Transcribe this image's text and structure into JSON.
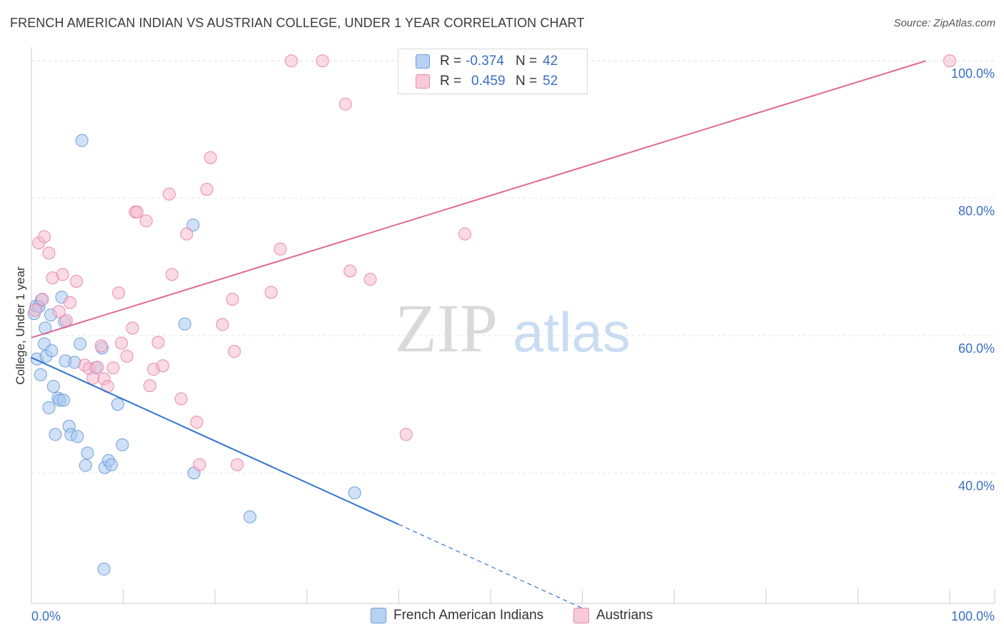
{
  "title": "FRENCH AMERICAN INDIAN VS AUSTRIAN COLLEGE, UNDER 1 YEAR CORRELATION CHART",
  "source": "Source: ZipAtlas.com",
  "watermark": {
    "zip": "ZIP",
    "atlas": "atlas"
  },
  "legend": {
    "rows": [
      {
        "r_label": "R =",
        "r_value": "-0.374",
        "n_label": "N =",
        "n_value": "42"
      },
      {
        "r_label": "R =",
        "r_value": "0.459",
        "n_label": "N =",
        "n_value": "52"
      }
    ]
  },
  "bottom_legend": [
    "French American Indians",
    "Austrians"
  ],
  "colors": {
    "blue_fill": "#a9c8f0",
    "blue_stroke": "#6f9fd8",
    "blue_line": "#2f74d0",
    "pink_fill": "#f6bcd0",
    "pink_stroke": "#e98aab",
    "pink_line": "#e06a93",
    "tick_text": "#3a6fc4",
    "grid": "#e3e3e3",
    "axis": "#cccccc"
  },
  "chart_data": {
    "type": "scatter",
    "title": "FRENCH AMERICAN INDIAN VS AUSTRIAN COLLEGE, UNDER 1 YEAR CORRELATION CHART",
    "xlabel": "",
    "ylabel": "College, Under 1 year",
    "xlim": [
      0,
      100
    ],
    "ylim": [
      21,
      102
    ],
    "x_tick_labels": [
      "0.0%",
      "100.0%"
    ],
    "y_ticks": [
      40,
      60,
      80,
      100
    ],
    "y_tick_labels": [
      "40.0%",
      "60.0%",
      "80.0%",
      "100.0%"
    ],
    "grid": true,
    "series": [
      {
        "name": "French American Indians",
        "r": -0.374,
        "n": 42,
        "trend": {
          "x0": 0,
          "y0": 56.8,
          "x1": 40.0,
          "y1": 32.5,
          "dash_to_x": 60.0,
          "dash_to_y": 20.3
        },
        "points": [
          [
            0.3,
            63.2
          ],
          [
            0.5,
            64.3
          ],
          [
            0.8,
            64.2
          ],
          [
            1.1,
            65.2
          ],
          [
            0.6,
            56.6
          ],
          [
            1.0,
            54.3
          ],
          [
            1.4,
            58.8
          ],
          [
            1.5,
            61.1
          ],
          [
            1.6,
            57.0
          ],
          [
            1.9,
            49.5
          ],
          [
            2.1,
            63.0
          ],
          [
            2.2,
            57.8
          ],
          [
            2.4,
            52.6
          ],
          [
            2.6,
            45.6
          ],
          [
            2.9,
            50.9
          ],
          [
            3.1,
            50.6
          ],
          [
            3.3,
            65.6
          ],
          [
            3.5,
            50.6
          ],
          [
            3.6,
            62.0
          ],
          [
            3.7,
            56.3
          ],
          [
            4.1,
            46.8
          ],
          [
            4.3,
            45.6
          ],
          [
            4.7,
            56.1
          ],
          [
            5.0,
            45.3
          ],
          [
            5.3,
            58.8
          ],
          [
            5.9,
            41.1
          ],
          [
            6.1,
            42.9
          ],
          [
            5.5,
            88.4
          ],
          [
            7.0,
            55.3
          ],
          [
            7.7,
            58.2
          ],
          [
            8.0,
            40.8
          ],
          [
            8.4,
            41.8
          ],
          [
            8.7,
            41.2
          ],
          [
            9.4,
            50.0
          ],
          [
            9.9,
            44.1
          ],
          [
            16.7,
            61.7
          ],
          [
            17.6,
            76.1
          ],
          [
            17.7,
            40.0
          ],
          [
            23.8,
            33.6
          ],
          [
            7.9,
            26.0
          ],
          [
            35.2,
            37.1
          ],
          [
            0.8,
            64.2
          ]
        ]
      },
      {
        "name": "Austrians",
        "r": 0.459,
        "n": 52,
        "trend": {
          "x0": 0,
          "y0": 59.7,
          "x1": 97.4,
          "y1": 100.0
        },
        "points": [
          [
            0.4,
            63.7
          ],
          [
            0.8,
            73.5
          ],
          [
            1.2,
            65.3
          ],
          [
            1.4,
            74.4
          ],
          [
            1.9,
            72.0
          ],
          [
            2.3,
            68.4
          ],
          [
            3.0,
            63.5
          ],
          [
            3.4,
            68.9
          ],
          [
            3.8,
            62.2
          ],
          [
            4.2,
            64.8
          ],
          [
            4.9,
            67.9
          ],
          [
            5.8,
            55.7
          ],
          [
            6.3,
            55.2
          ],
          [
            6.7,
            53.8
          ],
          [
            7.2,
            55.4
          ],
          [
            7.6,
            58.5
          ],
          [
            7.9,
            53.7
          ],
          [
            8.3,
            52.6
          ],
          [
            8.9,
            55.3
          ],
          [
            9.5,
            66.2
          ],
          [
            9.8,
            58.9
          ],
          [
            10.4,
            57.0
          ],
          [
            11.0,
            61.1
          ],
          [
            11.3,
            78.0
          ],
          [
            11.5,
            78.0
          ],
          [
            12.5,
            76.7
          ],
          [
            12.9,
            52.7
          ],
          [
            13.3,
            55.1
          ],
          [
            13.8,
            59.0
          ],
          [
            14.3,
            55.6
          ],
          [
            15.0,
            80.6
          ],
          [
            15.3,
            68.9
          ],
          [
            16.3,
            50.8
          ],
          [
            16.9,
            74.8
          ],
          [
            18.0,
            47.4
          ],
          [
            18.3,
            41.2
          ],
          [
            19.1,
            81.3
          ],
          [
            19.5,
            85.9
          ],
          [
            20.8,
            61.6
          ],
          [
            21.9,
            65.3
          ],
          [
            22.1,
            57.7
          ],
          [
            22.4,
            41.2
          ],
          [
            26.1,
            66.3
          ],
          [
            27.1,
            72.6
          ],
          [
            28.3,
            100.0
          ],
          [
            34.2,
            93.7
          ],
          [
            34.7,
            69.4
          ],
          [
            36.9,
            68.2
          ],
          [
            40.8,
            45.6
          ],
          [
            47.2,
            74.8
          ],
          [
            31.7,
            100.0
          ],
          [
            100.0,
            100.0
          ]
        ]
      }
    ]
  }
}
